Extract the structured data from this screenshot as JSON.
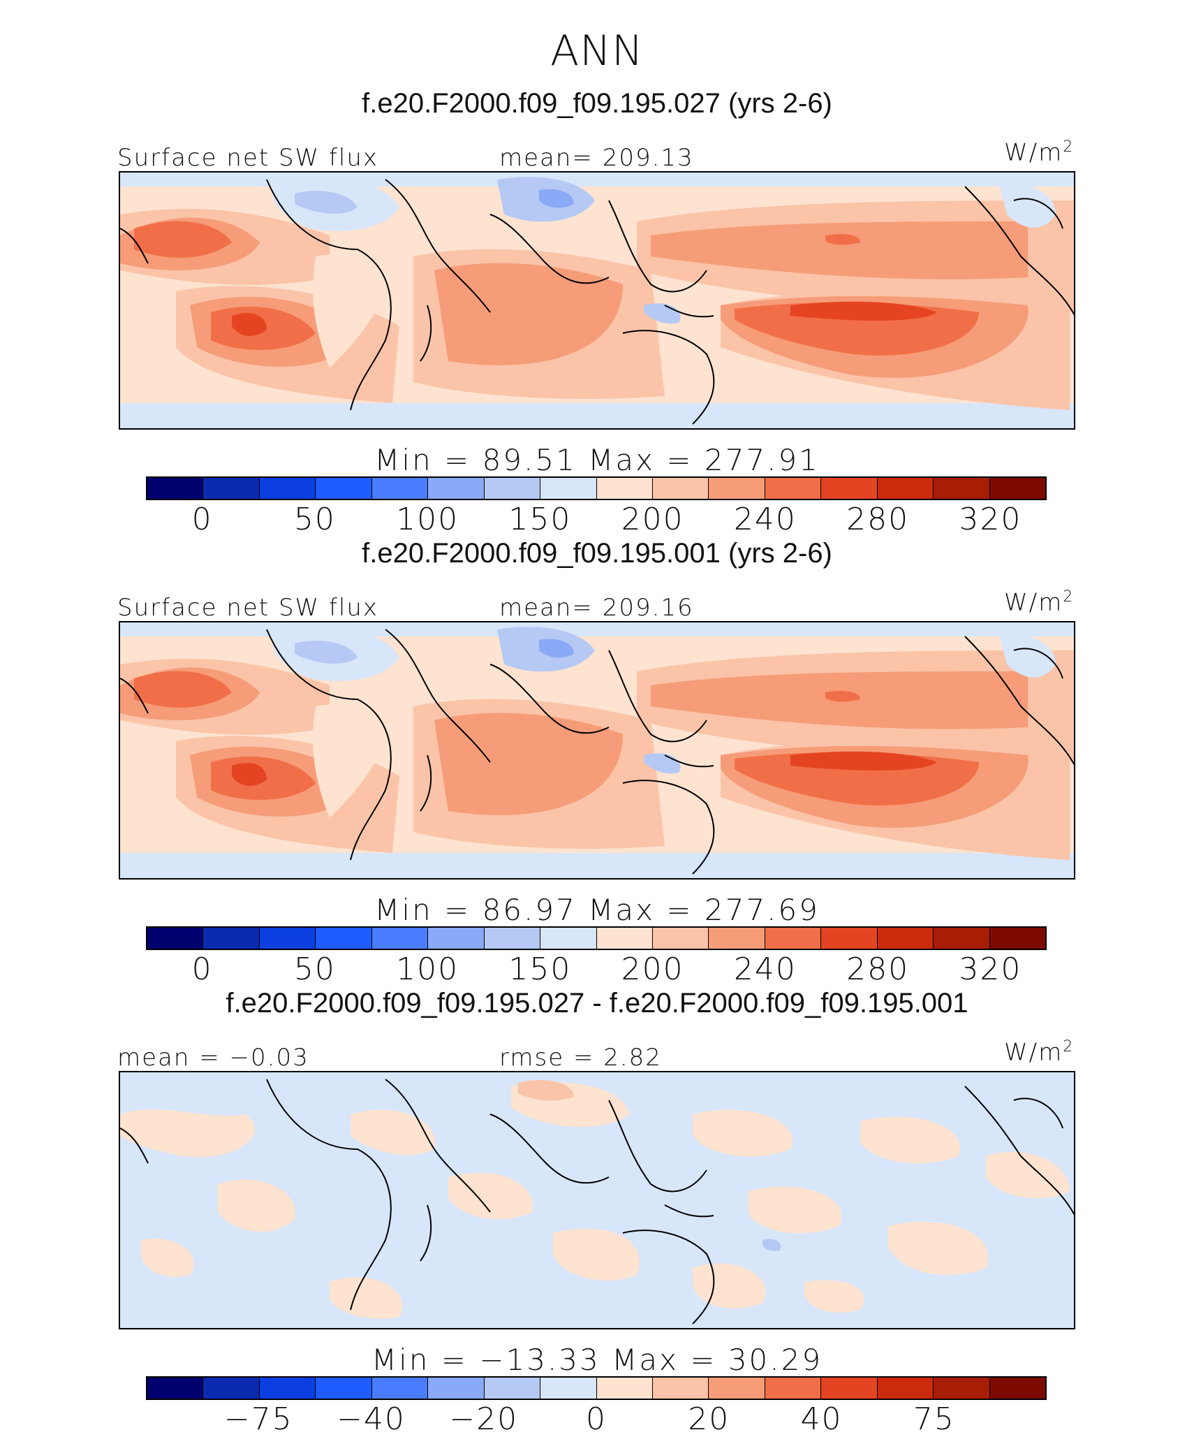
{
  "title": "ANN",
  "panels": [
    {
      "case_title": "f.e20.F2000.f09_f09.195.027 (yrs 2-6)",
      "left_label": "Surface net SW flux",
      "center_label": "mean= 209.13",
      "units": "W/m",
      "units_sup": "2",
      "minmax": "Min  =   89.51  Max  =  277.91",
      "colorbar_ticks": [
        "0",
        "50",
        "100",
        "150",
        "200",
        "240",
        "280",
        "320"
      ]
    },
    {
      "case_title": "f.e20.F2000.f09_f09.195.001 (yrs 2-6)",
      "left_label": "Surface net SW flux",
      "center_label": "mean= 209.16",
      "units": "W/m",
      "units_sup": "2",
      "minmax": "Min  =   86.97  Max  =  277.69",
      "colorbar_ticks": [
        "0",
        "50",
        "100",
        "150",
        "200",
        "240",
        "280",
        "320"
      ]
    },
    {
      "case_title": "f.e20.F2000.f09_f09.195.027 - f.e20.F2000.f09_f09.195.001",
      "left_label": "mean  =   −0.03",
      "center_label": "rmse  =    2.82",
      "units": "W/m",
      "units_sup": "2",
      "minmax": "Min  =  −13.33  Max  =   30.29",
      "colorbar_ticks": [
        "−75",
        "−40",
        "−20",
        "0",
        "20",
        "40",
        "75"
      ]
    }
  ],
  "colorbar_colors": [
    "#00006e",
    "#0a2ab0",
    "#0b3fe0",
    "#1f5cff",
    "#4a7cff",
    "#8aa9f6",
    "#b6c9f4",
    "#d8e6fa",
    "#fde3d0",
    "#fbc4a8",
    "#f69c78",
    "#f16f48",
    "#e54422",
    "#cc2a0c",
    "#a81d06",
    "#7d0a00"
  ],
  "map_field_colors": {
    "light_blue": "#d8e6fa",
    "blue": "#b6c9f4",
    "mid_blue": "#8aa9f6",
    "pale_orange": "#fde3d0",
    "light_orange": "#fbc4a8",
    "orange": "#f69c78",
    "dark_orange": "#f16f48",
    "red_orange": "#e54422"
  }
}
